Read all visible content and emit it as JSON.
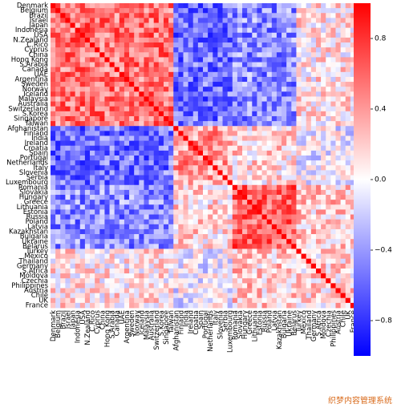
{
  "chart_data": {
    "type": "heatmap",
    "title": "",
    "xlabel": "",
    "ylabel": "",
    "labels": [
      "Denmark",
      "Belgium",
      "Brazil",
      "Israel",
      "Japan",
      "Indonesia",
      "USA",
      "N.Zealand",
      "C.Rico",
      "Cyprus",
      "China",
      "Hong Kong",
      "S.Arabia",
      "Canada",
      "UAE",
      "Argentina",
      "Sweden",
      "Norway",
      "Iceland",
      "Malaysia",
      "Australia",
      "Switzerland",
      "S.Korea",
      "Singapore",
      "Taiwan",
      "Afghanistan",
      "Finland",
      "India",
      "Ireland",
      "Croatia",
      "Spain",
      "Portugal",
      "Netherlands",
      "Italy",
      "Slovenia",
      "Serbia",
      "Luxembourg",
      "Romania",
      "Slovakia",
      "Hungary",
      "Greece",
      "Lithuania",
      "Estonia",
      "Russia",
      "Poland",
      "Latvia",
      "Kazakhstan",
      "Bulgaria",
      "Ukraine",
      "Belarus",
      "Turkey",
      "Mexico",
      "Thailand",
      "Germany",
      "S.Africa",
      "Moldova",
      "Czechia",
      "Philippines",
      "Austria",
      "Chile",
      "UK",
      "France"
    ],
    "blocks": [
      {
        "from": "Denmark",
        "to": "Taiwan",
        "mean_within": 0.55
      },
      {
        "from": "Afghanistan",
        "to": "Luxembourg",
        "mean_within": 0.4
      },
      {
        "from": "Romania",
        "to": "Belarus",
        "mean_within": 0.6
      },
      {
        "from": "Turkey",
        "to": "France",
        "mean_within": 0.15
      }
    ],
    "between_block_mean": {
      "1-2": -0.55,
      "1-3": -0.45,
      "1-4": 0.1,
      "2-3": 0.15,
      "2-4": -0.05,
      "3-4": 0.2
    },
    "diagonal": 1.0,
    "colorbar": {
      "cmap": "bwr",
      "vmin": -1.0,
      "vmax": 1.0,
      "ticks": [
        0.8,
        0.4,
        0.0,
        -0.4,
        -0.8
      ],
      "tick_labels": [
        "0.8",
        "0.4",
        "0.0",
        "−0.4",
        "−0.8"
      ],
      "position": "right"
    }
  },
  "watermark": "织梦内容管理系统",
  "colors": {
    "negative": "#0000ff",
    "zero": "#ffffff",
    "positive": "#ff0000"
  }
}
